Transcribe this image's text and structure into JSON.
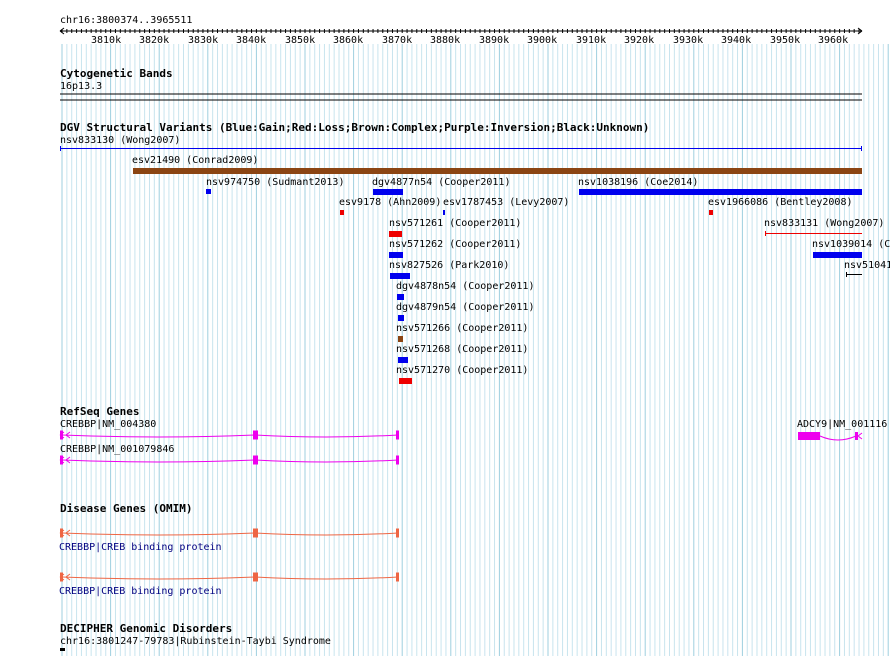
{
  "region": "chr16:3800374..3965511",
  "ruler": {
    "ticks": [
      "3810k",
      "3820k",
      "3830k",
      "3840k",
      "3850k",
      "3860k",
      "3870k",
      "3880k",
      "3890k",
      "3900k",
      "3910k",
      "3920k",
      "3930k",
      "3940k",
      "3950k",
      "3960k"
    ]
  },
  "cyto": {
    "title": "Cytogenetic Bands",
    "band": "16p13.3"
  },
  "dgv": {
    "title": "DGV Structural Variants (Blue:Gain;Red:Loss;Brown:Complex;Purple:Inversion;Black:Unknown)",
    "colors": {
      "gain": "#0000ee",
      "loss": "#ee0000",
      "complex": "#8b4513",
      "unknown": "#000000"
    },
    "variants": [
      {
        "label": "nsv833130 (Wong2007)",
        "type": "gain"
      },
      {
        "label": "esv21490 (Conrad2009)",
        "type": "complex"
      },
      {
        "label": "nsv974750 (Sudmant2013)",
        "type": "gain"
      },
      {
        "label": "dgv4877n54 (Cooper2011)",
        "type": "gain"
      },
      {
        "label": "nsv1038196 (Coe2014)",
        "type": "gain"
      },
      {
        "label": "esv9178 (Ahn2009)",
        "type": "loss"
      },
      {
        "label": "esv1787453 (Levy2007)",
        "type": "gain"
      },
      {
        "label": "esv1966086 (Bentley2008)",
        "type": "loss"
      },
      {
        "label": "nsv571261 (Cooper2011)",
        "type": "loss"
      },
      {
        "label": "nsv833131 (Wong2007)",
        "type": "loss"
      },
      {
        "label": "nsv571262 (Cooper2011)",
        "type": "gain"
      },
      {
        "label": "nsv1039014 (C",
        "type": "gain"
      },
      {
        "label": "nsv827526 (Park2010)",
        "type": "gain"
      },
      {
        "label": "nsv51041",
        "type": "unknown"
      },
      {
        "label": "dgv4878n54 (Cooper2011)",
        "type": "gain"
      },
      {
        "label": "dgv4879n54 (Cooper2011)",
        "type": "gain"
      },
      {
        "label": "nsv571266 (Cooper2011)",
        "type": "complex"
      },
      {
        "label": "nsv571268 (Cooper2011)",
        "type": "gain"
      },
      {
        "label": "nsv571270 (Cooper2011)",
        "type": "loss"
      }
    ]
  },
  "refseq": {
    "title": "RefSeq Genes",
    "color": "#ee00ee",
    "genes": [
      "CREBBP|NM_004380",
      "CREBBP|NM_001079846",
      "ADCY9|NM_001116"
    ]
  },
  "omim": {
    "title": "Disease Genes (OMIM)",
    "color": "#ee6644",
    "genes": [
      "CREBBP|CREB binding protein",
      "CREBBP|CREB binding protein"
    ]
  },
  "decipher": {
    "title": "DECIPHER Genomic Disorders",
    "entry": "chr16:3801247-79783|Rubinstein-Taybi Syndrome"
  }
}
